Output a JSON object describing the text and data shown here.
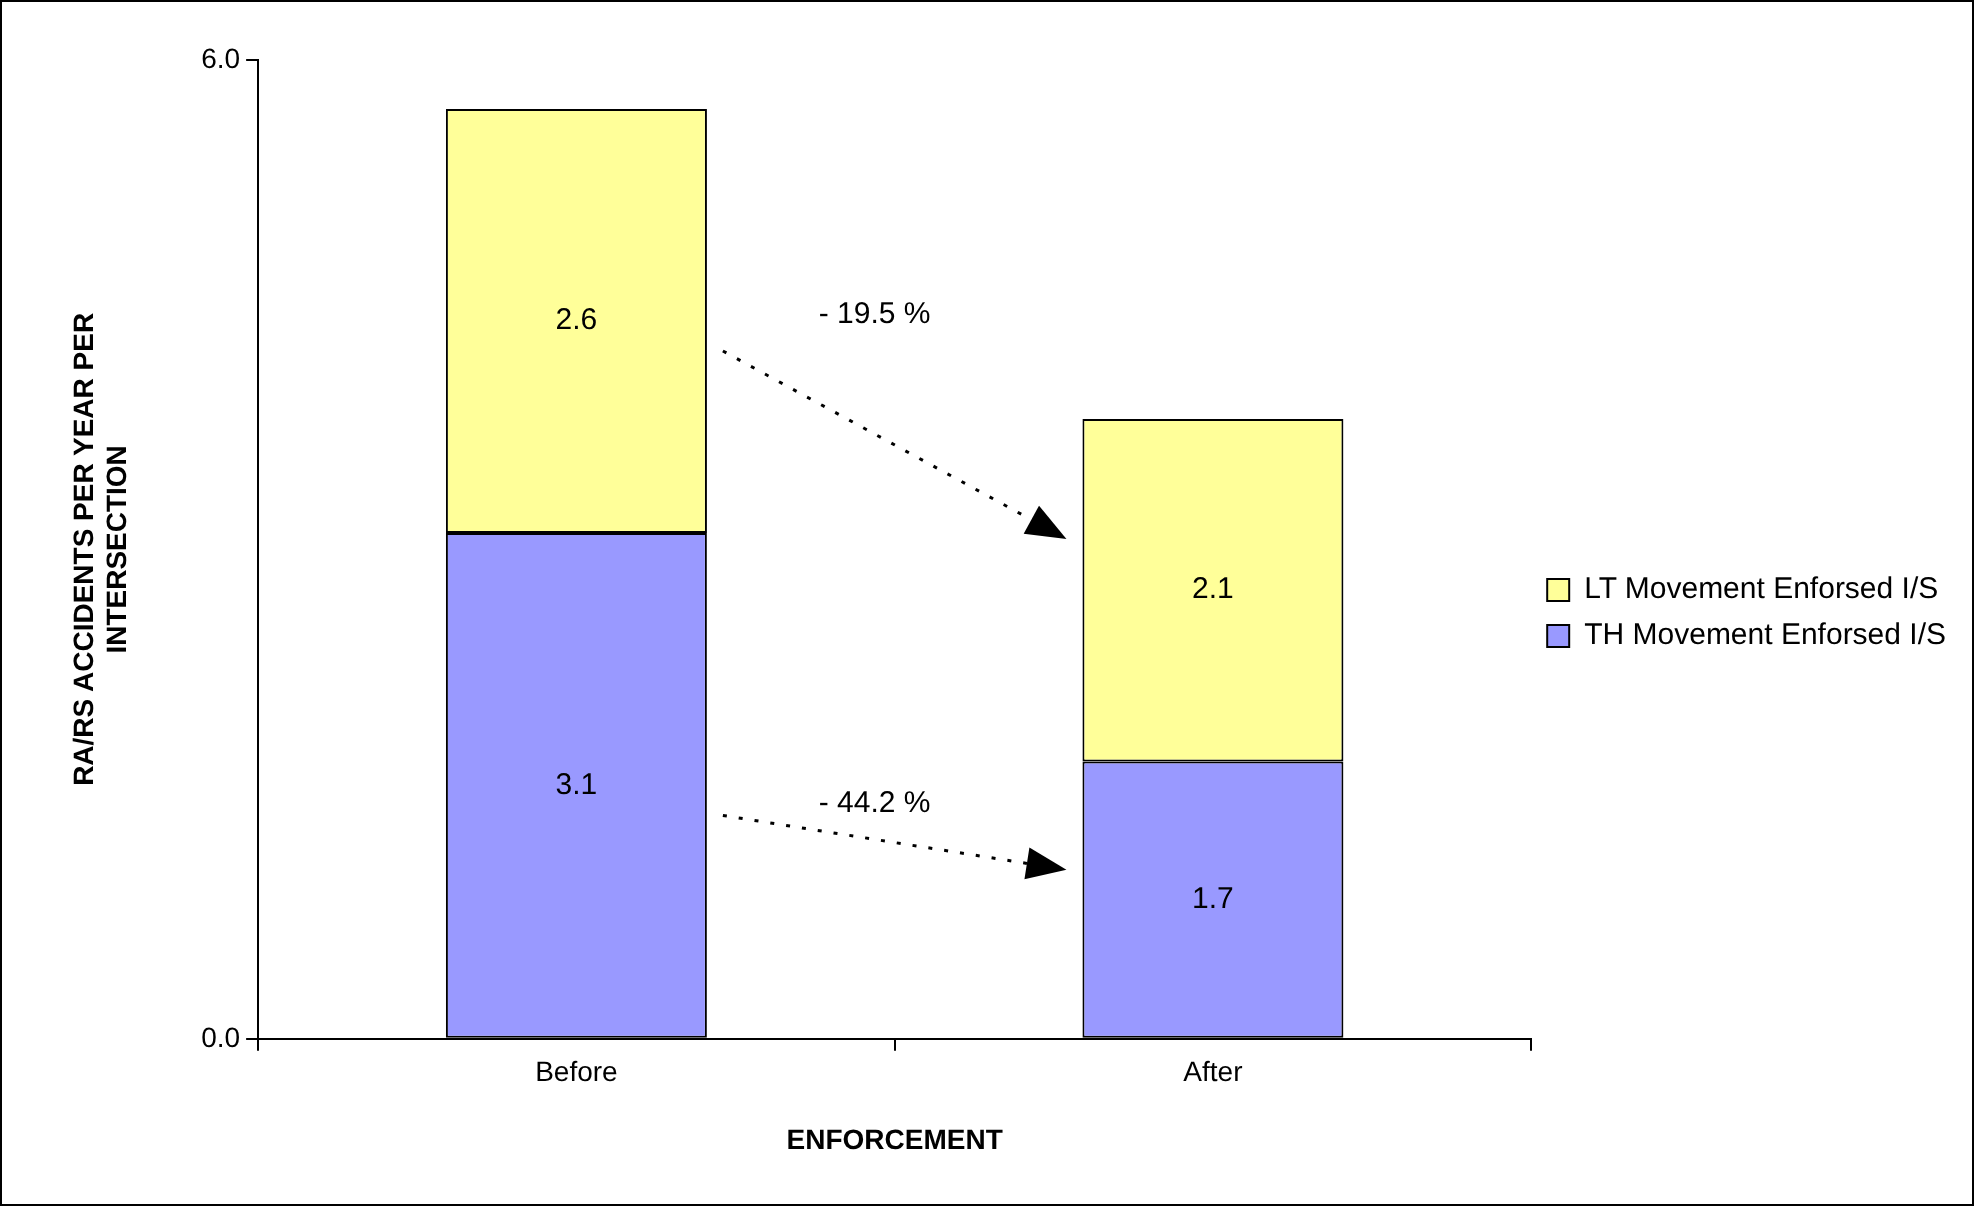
{
  "chart_data": {
    "type": "bar",
    "stacked": true,
    "categories": [
      "Before",
      "After"
    ],
    "series": [
      {
        "name": "TH Movement Enforsed I/S",
        "color": "#9999ff",
        "values": [
          3.1,
          1.7
        ]
      },
      {
        "name": "LT Movement Enforsed I/S",
        "color": "#ffff99",
        "values": [
          2.6,
          2.1
        ]
      }
    ],
    "ylim": [
      0,
      6
    ],
    "yticks": [
      {
        "value": 0,
        "label": "0.0"
      },
      {
        "value": 6,
        "label": "6.0"
      }
    ],
    "xlabel": "ENFORCEMENT",
    "ylabel": "RA/RS ACCIDENTS PER YEAR PER INTERSECTION",
    "data_labels": true,
    "grid": false,
    "legend": "right",
    "annotations": [
      "- 19.5 %",
      "- 44.2 %"
    ]
  }
}
